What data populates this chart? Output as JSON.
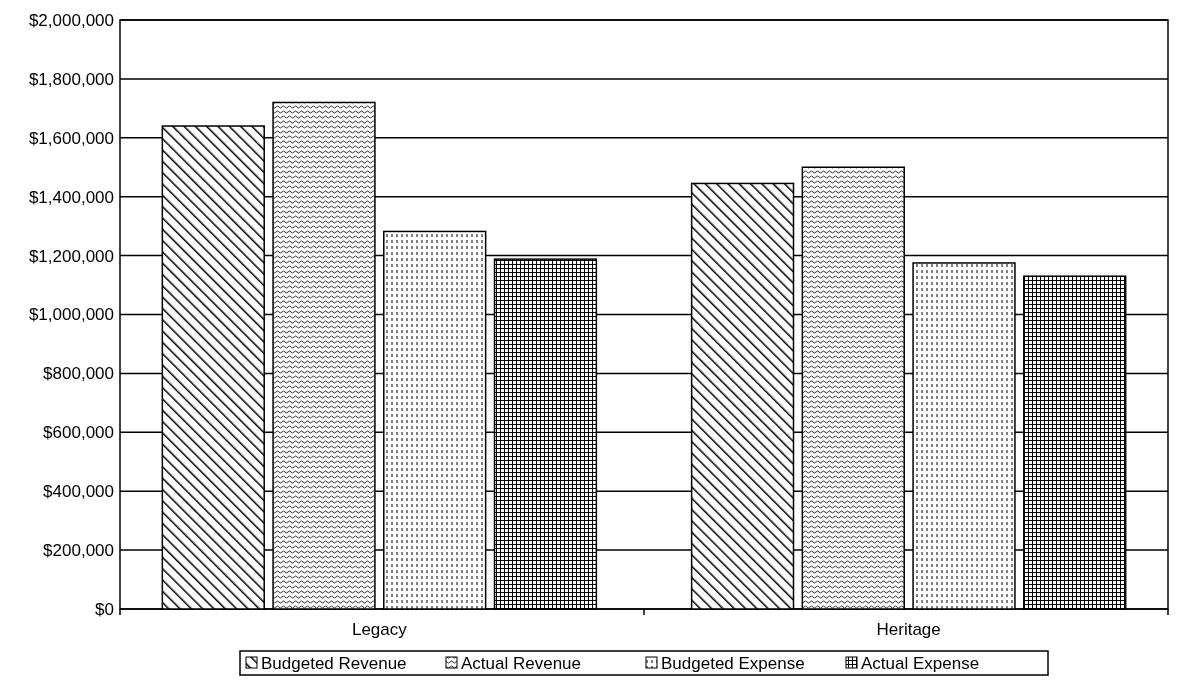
{
  "chart_data": {
    "type": "bar",
    "categories": [
      "Legacy",
      "Heritage"
    ],
    "series": [
      {
        "name": "Budgeted Revenue",
        "color": "#000000",
        "values": [
          1640000,
          1445000
        ]
      },
      {
        "name": "Actual Revenue",
        "color": "#000000",
        "values": [
          1720000,
          1500000
        ]
      },
      {
        "name": "Budgeted Expense",
        "color": "#000000",
        "values": [
          1282000,
          1175000
        ]
      },
      {
        "name": "Actual Expense",
        "color": "#000000",
        "values": [
          1188000,
          1130000
        ]
      }
    ],
    "ylim": [
      0,
      2000000
    ],
    "yticks": [
      {
        "value": 0,
        "label": "$0"
      },
      {
        "value": 200000,
        "label": "$200,000"
      },
      {
        "value": 400000,
        "label": "$400,000"
      },
      {
        "value": 600000,
        "label": "$600,000"
      },
      {
        "value": 800000,
        "label": "$800,000"
      },
      {
        "value": 1000000,
        "label": "$1,000,000"
      },
      {
        "value": 1200000,
        "label": "$1,200,000"
      },
      {
        "value": 1400000,
        "label": "$1,400,000"
      },
      {
        "value": 1600000,
        "label": "$1,600,000"
      },
      {
        "value": 1800000,
        "label": "$1,800,000"
      },
      {
        "value": 2000000,
        "label": "$2,000,000"
      }
    ],
    "grid": "y",
    "legend": "bottom"
  }
}
